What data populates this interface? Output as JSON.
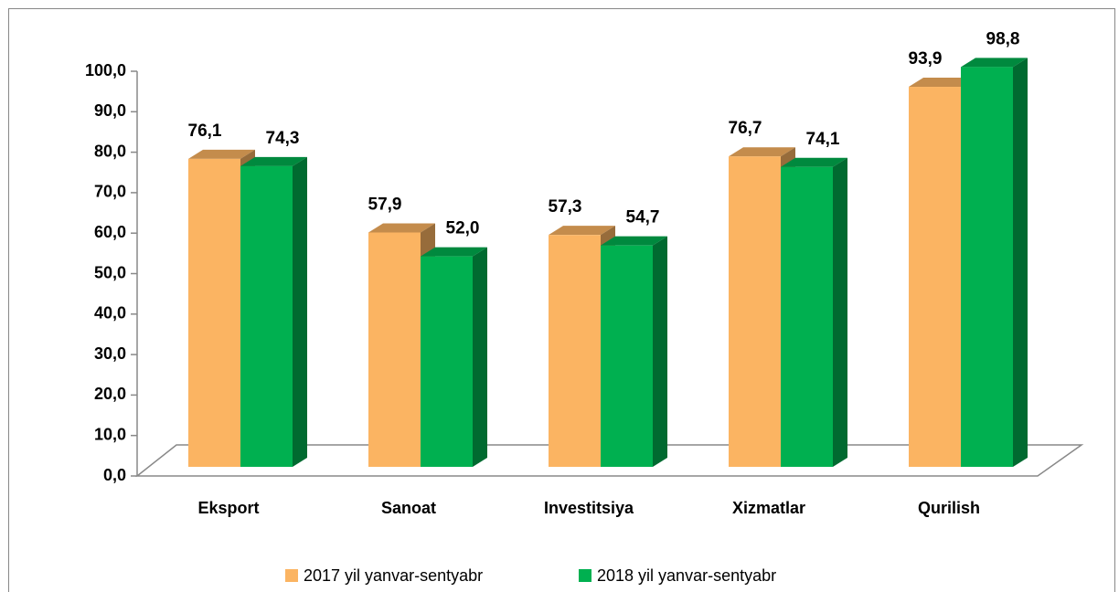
{
  "chart_data": {
    "type": "bar3d",
    "categories": [
      "Eksport",
      "Sanoat",
      "Investitsiya",
      "Xizmatlar",
      "Qurilish"
    ],
    "series": [
      {
        "name": "2017 yil yanvar-sentyabr",
        "color": "#fbb462",
        "values": [
          76.1,
          57.9,
          57.3,
          76.7,
          93.9
        ],
        "value_labels": [
          "76,1",
          "57,9",
          "57,3",
          "76,7",
          "93,9"
        ]
      },
      {
        "name": "2018 yil yanvar-sentyabr",
        "color": "#00b050",
        "values": [
          74.3,
          52.0,
          54.7,
          74.1,
          98.8
        ],
        "value_labels": [
          "74,3",
          "52,0",
          "54,7",
          "74,1",
          "98,8"
        ]
      }
    ],
    "ylim": [
      0,
      100
    ],
    "yticks": [
      {
        "value": 0,
        "label": "0,0"
      },
      {
        "value": 10,
        "label": "10,0"
      },
      {
        "value": 20,
        "label": "20,0"
      },
      {
        "value": 30,
        "label": "30,0"
      },
      {
        "value": 40,
        "label": "40,0"
      },
      {
        "value": 50,
        "label": "50,0"
      },
      {
        "value": 60,
        "label": "60,0"
      },
      {
        "value": 70,
        "label": "70,0"
      },
      {
        "value": 80,
        "label": "80,0"
      },
      {
        "value": 90,
        "label": "90,0"
      },
      {
        "value": 100,
        "label": "100,0"
      }
    ],
    "grid": false,
    "legend": "bottom"
  }
}
